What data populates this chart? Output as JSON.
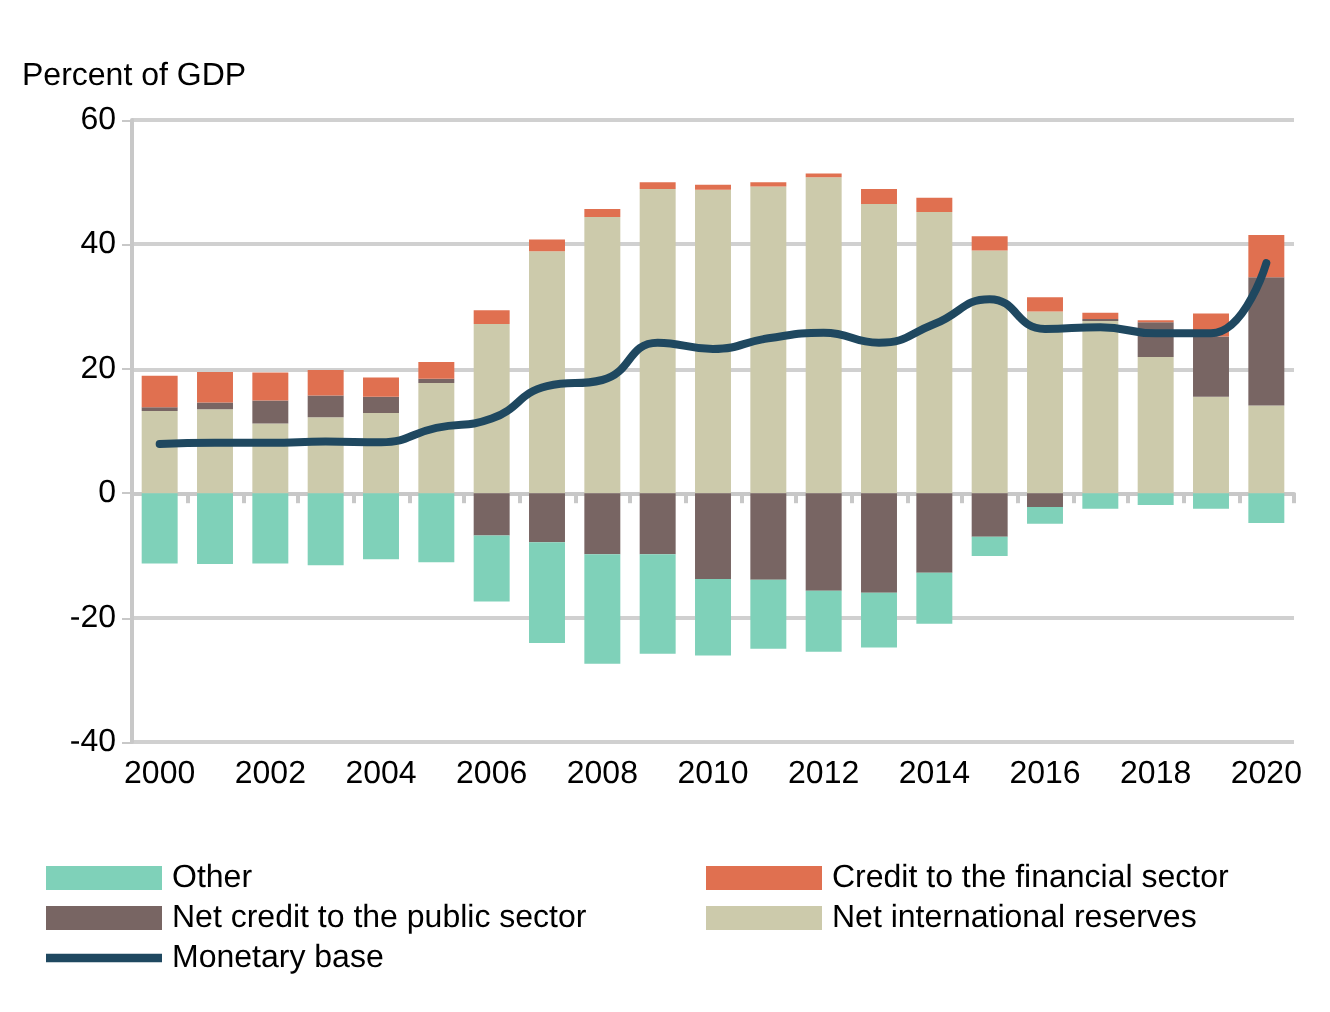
{
  "chart_data": {
    "type": "bar",
    "stacked": true,
    "ylabel": "Percent of GDP",
    "categories": [
      "2000",
      null,
      "2002",
      null,
      "2004",
      null,
      "2006",
      null,
      "2008",
      null,
      "2010",
      null,
      "2012",
      null,
      "2014",
      null,
      "2016",
      null,
      "2018",
      null,
      "2020"
    ],
    "series": [
      {
        "name": "Net international reserves",
        "color": "#cccaab",
        "values": [
          13.2,
          13.5,
          11.2,
          12.2,
          12.9,
          17.7,
          27.2,
          38.9,
          44.4,
          48.9,
          48.8,
          49.3,
          50.8,
          46.5,
          45.2,
          39,
          29.2,
          27.7,
          21.9,
          15.5,
          14.1
        ]
      },
      {
        "name": "Net credit to the public sector",
        "color": "#786563",
        "values": [
          0.6,
          1.1,
          3.7,
          3.5,
          2.6,
          0.7,
          -6.8,
          -7.9,
          -9.8,
          -9.8,
          -13.8,
          -13.9,
          -15.7,
          -16,
          -12.8,
          -7,
          -2.2,
          0.3,
          5.6,
          9.7,
          20.6
        ]
      },
      {
        "name": "Credit to the financial sector",
        "color": "#e07050",
        "values": [
          5.1,
          4.9,
          4.5,
          4.1,
          3.1,
          2.7,
          2.2,
          1.9,
          1.3,
          1.1,
          0.8,
          0.7,
          0.6,
          2.4,
          2.3,
          2.3,
          2.3,
          1,
          0.3,
          3.7,
          6.8
        ]
      },
      {
        "name": "Other",
        "color": "#7fd1b9",
        "values": [
          -11.3,
          -11.4,
          -11.3,
          -11.6,
          -10.6,
          -11.1,
          -10.6,
          -16.2,
          -17.6,
          -16,
          -12.3,
          -11.1,
          -9.8,
          -8.8,
          -8.2,
          -3.1,
          -2.7,
          -2.5,
          -1.9,
          -2.5,
          -4.8
        ]
      },
      {
        "name": "Monetary base",
        "type": "line",
        "color": "#1f4860",
        "values": [
          7.9,
          8.1,
          8.1,
          8.3,
          8.2,
          10.5,
          12,
          17.2,
          18.2,
          24.2,
          23.2,
          24.9,
          25.8,
          24.2,
          27.2,
          31.2,
          26.4,
          26.7,
          25.7,
          25.7,
          37
        ]
      }
    ],
    "ylim": [
      -40,
      60
    ],
    "yticks": [
      -40,
      -20,
      0,
      20,
      40,
      60
    ],
    "grid": "y",
    "legend": "bottom",
    "line_style": "solid",
    "marker": "none"
  }
}
